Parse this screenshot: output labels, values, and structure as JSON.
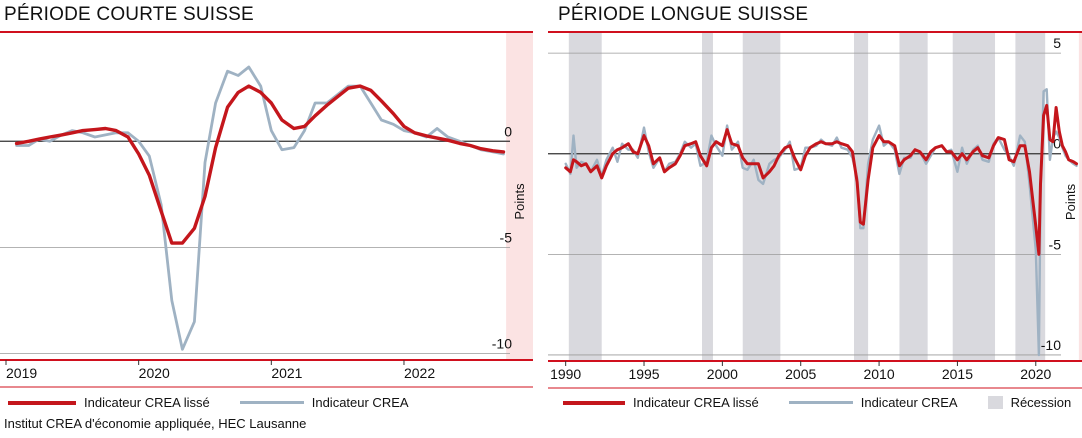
{
  "colors": {
    "smoothed": "#c4161c",
    "raw": "#9fb2c3",
    "recession": "#d9d9de",
    "accent": "#d0101e",
    "forecast": "#fbe3e3"
  },
  "legend": {
    "smoothed": "Indicateur CREA lissé",
    "raw": "Indicateur CREA",
    "recession": "Récession"
  },
  "source": "Institut CREA d'économie appliquée, HEC Lausanne",
  "chart_data": [
    {
      "type": "line",
      "title": "PÉRIODE COURTE SUISSE",
      "ylabel": "Points",
      "xlim": [
        2019,
        2022.95
      ],
      "ylim": [
        -10.4,
        5.1
      ],
      "xticks": [
        2019,
        2020,
        2021,
        2022
      ],
      "yticks": [
        0,
        -5,
        -10
      ],
      "ytick_labels": [
        "0",
        "-5",
        "-10"
      ],
      "forecast_start": 2022.77,
      "series": [
        {
          "name": "Indicateur CREA",
          "key": "raw",
          "x": [
            2019.08,
            2019.17,
            2019.25,
            2019.33,
            2019.42,
            2019.5,
            2019.58,
            2019.67,
            2019.75,
            2019.83,
            2019.92,
            2020.0,
            2020.08,
            2020.17,
            2020.25,
            2020.33,
            2020.42,
            2020.5,
            2020.58,
            2020.67,
            2020.75,
            2020.83,
            2020.92,
            2021.0,
            2021.08,
            2021.17,
            2021.25,
            2021.33,
            2021.42,
            2021.5,
            2021.58,
            2021.67,
            2021.75,
            2021.83,
            2021.92,
            2022.0,
            2022.08,
            2022.17,
            2022.25,
            2022.33,
            2022.42,
            2022.5,
            2022.58,
            2022.67,
            2022.75
          ],
          "y": [
            -0.2,
            -0.2,
            0.1,
            0.0,
            0.3,
            0.5,
            0.4,
            0.2,
            0.3,
            0.4,
            0.4,
            0.0,
            -0.7,
            -3.0,
            -7.5,
            -9.8,
            -8.5,
            -1.0,
            1.8,
            3.3,
            3.1,
            3.5,
            2.6,
            0.5,
            -0.4,
            -0.3,
            0.5,
            1.8,
            1.8,
            2.2,
            2.6,
            2.6,
            1.8,
            1.0,
            0.8,
            0.5,
            0.4,
            0.2,
            0.6,
            0.2,
            0.0,
            -0.2,
            -0.4,
            -0.5,
            -0.6
          ]
        },
        {
          "name": "Indicateur CREA lissé",
          "key": "smoothed",
          "x": [
            2019.08,
            2019.17,
            2019.25,
            2019.33,
            2019.42,
            2019.5,
            2019.58,
            2019.67,
            2019.75,
            2019.83,
            2019.92,
            2020.0,
            2020.08,
            2020.17,
            2020.25,
            2020.33,
            2020.42,
            2020.5,
            2020.58,
            2020.67,
            2020.75,
            2020.83,
            2020.92,
            2021.0,
            2021.08,
            2021.17,
            2021.25,
            2021.33,
            2021.42,
            2021.5,
            2021.58,
            2021.67,
            2021.75,
            2021.83,
            2021.92,
            2022.0,
            2022.08,
            2022.17,
            2022.25,
            2022.33,
            2022.42,
            2022.5,
            2022.58,
            2022.67,
            2022.75
          ],
          "y": [
            -0.1,
            0.0,
            0.1,
            0.2,
            0.3,
            0.4,
            0.5,
            0.55,
            0.6,
            0.5,
            0.2,
            -0.6,
            -1.6,
            -3.3,
            -4.8,
            -4.8,
            -4.1,
            -2.6,
            -0.3,
            1.6,
            2.3,
            2.6,
            2.3,
            1.8,
            1.0,
            0.6,
            0.7,
            1.2,
            1.7,
            2.1,
            2.5,
            2.6,
            2.4,
            1.9,
            1.3,
            0.7,
            0.4,
            0.25,
            0.15,
            0.05,
            -0.1,
            -0.2,
            -0.35,
            -0.45,
            -0.5
          ]
        }
      ]
    },
    {
      "type": "line",
      "title": "PÉRIODE LONGUE SUISSE",
      "ylabel": "Points",
      "xlim": [
        1989.0,
        2022.95
      ],
      "ylim": [
        -10.4,
        6.0
      ],
      "xticks": [
        1990,
        1995,
        2000,
        2005,
        2010,
        2015,
        2020
      ],
      "yticks": [
        5,
        0,
        -5,
        -10
      ],
      "ytick_labels": [
        "5",
        "0",
        "-5",
        "-10"
      ],
      "forecast_start": 2022.75,
      "recessions": [
        [
          1990.2,
          1992.3
        ],
        [
          1998.7,
          1999.4
        ],
        [
          2001.3,
          2003.7
        ],
        [
          2008.4,
          2009.3
        ],
        [
          2011.3,
          2013.1
        ],
        [
          2014.7,
          2017.4
        ],
        [
          2018.7,
          2020.6
        ]
      ],
      "series": [
        {
          "name": "Indicateur CREA",
          "key": "raw",
          "x": [
            1990.0,
            1990.3,
            1990.5,
            1990.7,
            1991.0,
            1991.3,
            1991.6,
            1992.0,
            1992.3,
            1992.6,
            1993.0,
            1993.3,
            1993.6,
            1994.0,
            1994.3,
            1994.6,
            1995.0,
            1995.3,
            1995.6,
            1996.0,
            1996.3,
            1996.6,
            1997.0,
            1997.3,
            1997.6,
            1998.0,
            1998.3,
            1998.6,
            1999.0,
            1999.3,
            1999.6,
            2000.0,
            2000.3,
            2000.6,
            2001.0,
            2001.3,
            2001.6,
            2002.0,
            2002.3,
            2002.6,
            2003.0,
            2003.3,
            2003.6,
            2004.0,
            2004.3,
            2004.6,
            2005.0,
            2005.3,
            2005.6,
            2006.0,
            2006.3,
            2006.6,
            2007.0,
            2007.3,
            2007.6,
            2008.0,
            2008.3,
            2008.6,
            2008.8,
            2009.0,
            2009.3,
            2009.6,
            2010.0,
            2010.3,
            2010.6,
            2011.0,
            2011.3,
            2011.6,
            2012.0,
            2012.3,
            2012.6,
            2013.0,
            2013.3,
            2013.6,
            2014.0,
            2014.3,
            2014.6,
            2015.0,
            2015.3,
            2015.6,
            2016.0,
            2016.3,
            2016.6,
            2017.0,
            2017.3,
            2017.6,
            2018.0,
            2018.3,
            2018.6,
            2019.0,
            2019.3,
            2019.6,
            2020.0,
            2020.2,
            2020.3,
            2020.5,
            2020.7,
            2020.9,
            2021.1,
            2021.3,
            2021.5,
            2021.7,
            2021.9,
            2022.1,
            2022.4,
            2022.6
          ],
          "y": [
            -0.5,
            -1.0,
            0.9,
            -0.7,
            -0.4,
            -0.5,
            -0.9,
            -0.3,
            -1.1,
            -0.3,
            0.3,
            -0.4,
            0.5,
            0.2,
            0.2,
            -0.2,
            1.3,
            0.1,
            -0.7,
            -0.2,
            -0.9,
            -0.5,
            -0.4,
            0.0,
            0.6,
            0.3,
            0.5,
            -0.6,
            -0.4,
            0.9,
            0.4,
            -0.1,
            1.4,
            0.2,
            0.6,
            -0.7,
            -0.8,
            -0.3,
            -1.3,
            -1.5,
            -0.5,
            -0.3,
            -0.2,
            0.2,
            0.6,
            -0.8,
            -0.7,
            0.3,
            0.3,
            0.4,
            0.7,
            0.5,
            0.4,
            0.8,
            0.3,
            0.2,
            -0.2,
            -1.2,
            -3.7,
            -3.7,
            -0.5,
            0.7,
            1.4,
            0.4,
            0.6,
            0.2,
            -1.0,
            -0.2,
            -0.2,
            0.2,
            0.1,
            -0.5,
            -0.1,
            0.3,
            0.4,
            0.1,
            0.2,
            -0.9,
            0.3,
            -0.5,
            0.2,
            0.4,
            -0.3,
            -0.4,
            0.5,
            0.8,
            0.2,
            -0.1,
            -0.6,
            0.9,
            0.6,
            -1.5,
            -4.8,
            -10.0,
            -2.0,
            3.1,
            3.2,
            -0.3,
            0.8,
            1.1,
            0.8,
            0.3,
            -0.1,
            -0.3,
            -0.5,
            -0.6
          ]
        },
        {
          "name": "Indicateur CREA lissé",
          "key": "smoothed",
          "x": [
            1990.0,
            1990.3,
            1990.5,
            1990.7,
            1991.0,
            1991.3,
            1991.6,
            1992.0,
            1992.3,
            1992.6,
            1993.0,
            1993.3,
            1993.6,
            1994.0,
            1994.3,
            1994.6,
            1995.0,
            1995.3,
            1995.6,
            1996.0,
            1996.3,
            1996.6,
            1997.0,
            1997.3,
            1997.6,
            1998.0,
            1998.3,
            1998.6,
            1999.0,
            1999.3,
            1999.6,
            2000.0,
            2000.3,
            2000.6,
            2001.0,
            2001.3,
            2001.6,
            2002.0,
            2002.3,
            2002.6,
            2003.0,
            2003.3,
            2003.6,
            2004.0,
            2004.3,
            2004.6,
            2005.0,
            2005.3,
            2005.6,
            2006.0,
            2006.3,
            2006.6,
            2007.0,
            2007.3,
            2007.6,
            2008.0,
            2008.3,
            2008.6,
            2008.8,
            2009.0,
            2009.3,
            2009.6,
            2010.0,
            2010.3,
            2010.6,
            2011.0,
            2011.3,
            2011.6,
            2012.0,
            2012.3,
            2012.6,
            2013.0,
            2013.3,
            2013.6,
            2014.0,
            2014.3,
            2014.6,
            2015.0,
            2015.3,
            2015.6,
            2016.0,
            2016.3,
            2016.6,
            2017.0,
            2017.3,
            2017.6,
            2018.0,
            2018.3,
            2018.6,
            2019.0,
            2019.3,
            2019.6,
            2020.0,
            2020.2,
            2020.3,
            2020.5,
            2020.7,
            2020.9,
            2021.1,
            2021.3,
            2021.5,
            2021.7,
            2021.9,
            2022.1,
            2022.4,
            2022.6
          ],
          "y": [
            -0.7,
            -0.9,
            -0.3,
            -0.4,
            -0.6,
            -0.5,
            -0.9,
            -0.6,
            -1.2,
            -0.6,
            0.0,
            0.2,
            0.3,
            0.5,
            0.1,
            0.0,
            0.9,
            0.4,
            -0.5,
            -0.2,
            -0.9,
            -0.7,
            -0.5,
            -0.1,
            0.4,
            0.5,
            0.6,
            -0.1,
            -0.6,
            0.3,
            0.6,
            0.4,
            1.2,
            0.5,
            0.4,
            -0.2,
            -0.5,
            -0.5,
            -0.5,
            -1.2,
            -0.9,
            -0.6,
            -0.1,
            0.3,
            0.4,
            -0.2,
            -0.8,
            -0.1,
            0.3,
            0.5,
            0.6,
            0.5,
            0.5,
            0.6,
            0.5,
            0.4,
            0.1,
            -1.4,
            -3.4,
            -3.5,
            -1.3,
            0.3,
            0.9,
            0.6,
            0.6,
            0.4,
            -0.6,
            -0.3,
            -0.1,
            0.2,
            0.1,
            -0.3,
            0.1,
            0.3,
            0.4,
            0.1,
            0.1,
            -0.3,
            0.0,
            -0.3,
            0.1,
            0.3,
            -0.1,
            -0.2,
            0.4,
            0.8,
            0.7,
            -0.3,
            -0.4,
            0.4,
            0.4,
            -0.9,
            -3.6,
            -5.0,
            -1.5,
            1.9,
            2.4,
            0.7,
            0.6,
            2.3,
            1.1,
            0.4,
            0.1,
            -0.3,
            -0.4,
            -0.5
          ]
        }
      ]
    }
  ]
}
